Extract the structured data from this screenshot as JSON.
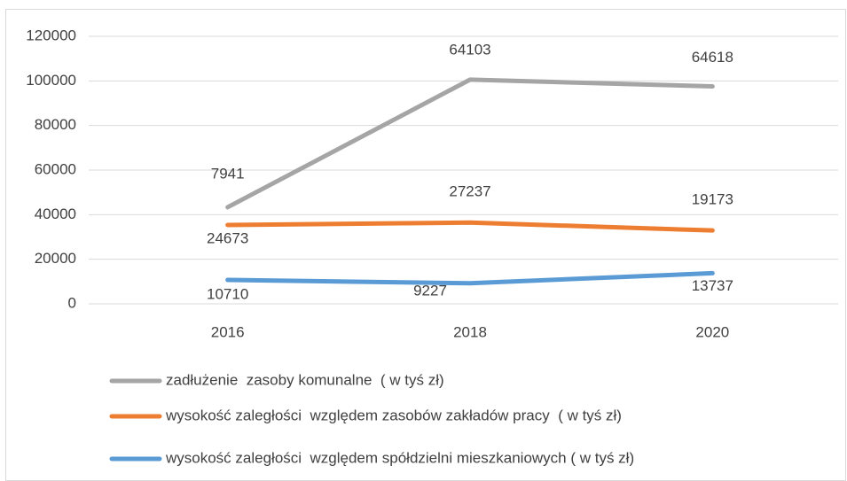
{
  "chart_data": {
    "type": "line",
    "stacked": true,
    "categories": [
      "2016",
      "2018",
      "2020"
    ],
    "series": [
      {
        "name": "zadłużenie  zasoby komunalne  ( w tyś zł)",
        "color": "#a5a5a5",
        "values": [
          7941,
          64103,
          64618
        ]
      },
      {
        "name": "wysokość zaległości  względem zasobów zakładów pracy  ( w tyś zł)",
        "color": "#ed7d31",
        "values": [
          24673,
          27237,
          19173
        ]
      },
      {
        "name": "wysokość zaległości  względem spółdzielni mieszkaniowych ( w tyś zł)",
        "color": "#5b9bd5",
        "values": [
          10710,
          9227,
          13737
        ]
      }
    ],
    "ylim": [
      0,
      120000
    ],
    "yticks": [
      0,
      20000,
      40000,
      60000,
      80000,
      100000,
      120000
    ],
    "grid": true,
    "legend": "bottom"
  }
}
